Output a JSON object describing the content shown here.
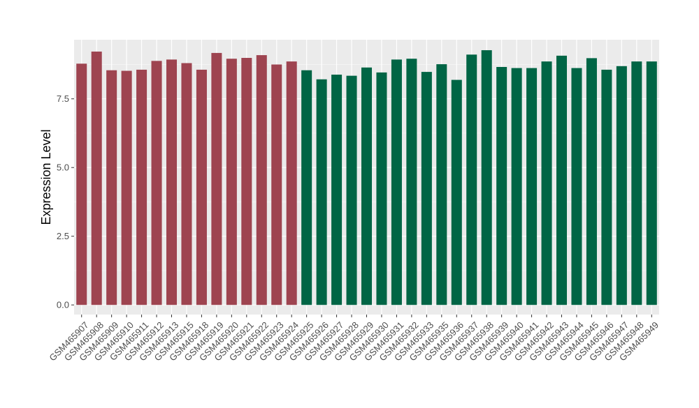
{
  "chart_data": {
    "type": "bar",
    "title": "",
    "xlabel": "",
    "ylabel": "Expression Level",
    "ylim": [
      -0.35,
      9.65
    ],
    "yticks": [
      0.0,
      2.5,
      5.0,
      7.5
    ],
    "ytick_labels": [
      "0.0",
      "2.5",
      "5.0",
      "7.5"
    ],
    "grid": true,
    "legend": "none",
    "categories": [
      "GSM465907",
      "GSM465908",
      "GSM465909",
      "GSM465910",
      "GSM465911",
      "GSM465912",
      "GSM465913",
      "GSM465915",
      "GSM465918",
      "GSM465919",
      "GSM465920",
      "GSM465921",
      "GSM465922",
      "GSM465923",
      "GSM465924",
      "GSM465925",
      "GSM465926",
      "GSM465927",
      "GSM465928",
      "GSM465929",
      "GSM465930",
      "GSM465931",
      "GSM465932",
      "GSM465933",
      "GSM465935",
      "GSM465936",
      "GSM465937",
      "GSM465938",
      "GSM465939",
      "GSM465940",
      "GSM465941",
      "GSM465942",
      "GSM465943",
      "GSM465944",
      "GSM465945",
      "GSM465946",
      "GSM465947",
      "GSM465948",
      "GSM465949"
    ],
    "values": [
      8.78,
      9.22,
      8.54,
      8.52,
      8.56,
      8.88,
      8.93,
      8.8,
      8.56,
      9.17,
      8.96,
      8.99,
      9.09,
      8.75,
      8.86,
      8.54,
      8.21,
      8.38,
      8.34,
      8.64,
      8.46,
      8.93,
      8.96,
      8.48,
      8.76,
      8.19,
      9.11,
      9.27,
      8.66,
      8.62,
      8.62,
      8.86,
      9.07,
      8.62,
      8.98,
      8.56,
      8.69,
      8.86,
      8.86
    ],
    "group_sizes": [
      15,
      24
    ],
    "colors": {
      "group1": "#9e4450",
      "group2": "#006545",
      "panel_bg": "#ebebeb",
      "grid_major": "#ffffff",
      "grid_minor": "#f5f5f5",
      "axis_text": "#4d4d4d",
      "axis_title": "#000000"
    }
  }
}
